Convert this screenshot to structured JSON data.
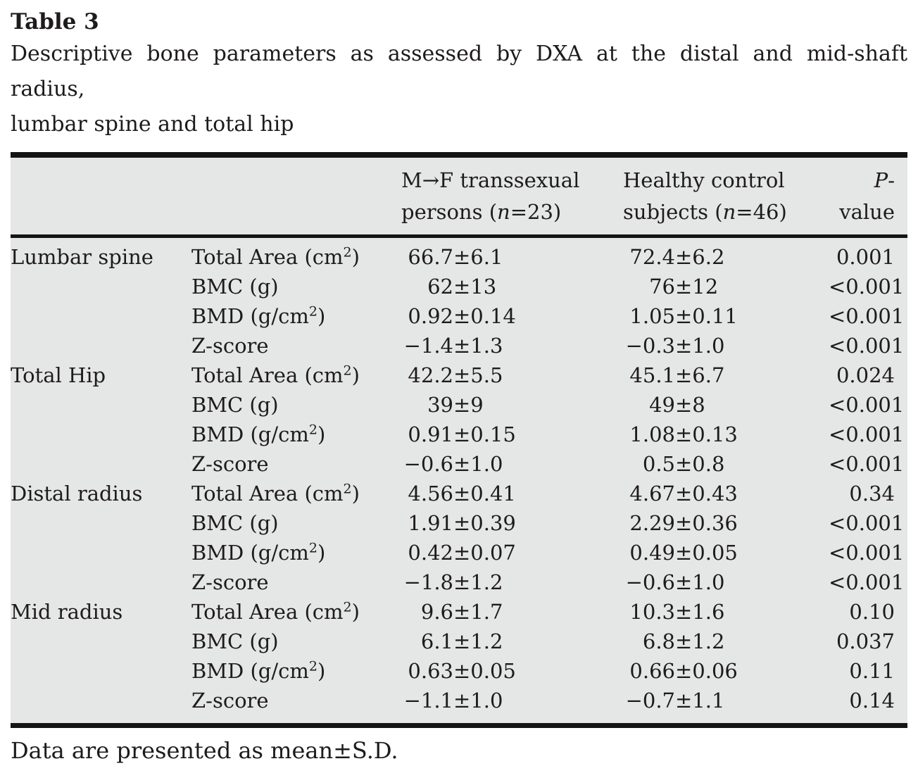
{
  "page": {
    "table_label": "Table 3",
    "caption_line1": "Descriptive bone parameters as assessed by DXA at the distal and mid-shaft radius,",
    "caption_line2": "lumbar spine and total hip",
    "footnote": "Data are presented as mean±S.D."
  },
  "colors": {
    "table_background": "#e5e6e6",
    "rule": "#141414",
    "text": "#1e1b1b"
  },
  "table": {
    "header": {
      "mf_line1": "M→F transsexual",
      "mf_line2": [
        "persons (",
        "n",
        "=23)"
      ],
      "hc_line1": "Healthy control",
      "hc_line2": [
        "subjects (",
        "n",
        "=46)"
      ],
      "p": [
        "P",
        "-value"
      ]
    },
    "groups": [
      {
        "region": "Lumbar spine",
        "rows": [
          {
            "param": [
              "Total Area (cm",
              "2",
              ")"
            ],
            "mf": [
              "66.7",
              "±6.1"
            ],
            "hc": [
              "72.4",
              "±6.2"
            ],
            "p": "0.001"
          },
          {
            "param": [
              "BMC (g)"
            ],
            "mf": [
              "62",
              "±13"
            ],
            "hc": [
              "76",
              "±12"
            ],
            "p": "<0.001"
          },
          {
            "param": [
              "BMD (g/cm",
              "2",
              ")"
            ],
            "mf": [
              "0.92",
              "±0.14"
            ],
            "hc": [
              "1.05",
              "±0.11"
            ],
            "p": "<0.001"
          },
          {
            "param": [
              "Z-score"
            ],
            "mf": [
              "−1.4",
              "±1.3"
            ],
            "hc": [
              "−0.3",
              "±1.0"
            ],
            "p": "<0.001"
          }
        ]
      },
      {
        "region": "Total Hip",
        "rows": [
          {
            "param": [
              "Total Area (cm",
              "2",
              ")"
            ],
            "mf": [
              "42.2",
              "±5.5"
            ],
            "hc": [
              "45.1",
              "±6.7"
            ],
            "p": "0.024"
          },
          {
            "param": [
              "BMC (g)"
            ],
            "mf": [
              "39",
              "±9"
            ],
            "hc": [
              "49",
              "±8"
            ],
            "p": "<0.001"
          },
          {
            "param": [
              "BMD (g/cm",
              "2",
              ")"
            ],
            "mf": [
              "0.91",
              "±0.15"
            ],
            "hc": [
              "1.08",
              "±0.13"
            ],
            "p": "<0.001"
          },
          {
            "param": [
              "Z-score"
            ],
            "mf": [
              "−0.6",
              "±1.0"
            ],
            "hc": [
              "0.5",
              "±0.8"
            ],
            "p": "<0.001"
          }
        ]
      },
      {
        "region": "Distal radius",
        "rows": [
          {
            "param": [
              "Total Area (cm",
              "2",
              ")"
            ],
            "mf": [
              "4.56",
              "±0.41"
            ],
            "hc": [
              "4.67",
              "±0.43"
            ],
            "p": "0.34"
          },
          {
            "param": [
              "BMC (g)"
            ],
            "mf": [
              "1.91",
              "±0.39"
            ],
            "hc": [
              "2.29",
              "±0.36"
            ],
            "p": "<0.001"
          },
          {
            "param": [
              "BMD (g/cm",
              "2",
              ")"
            ],
            "mf": [
              "0.42",
              "±0.07"
            ],
            "hc": [
              "0.49",
              "±0.05"
            ],
            "p": "<0.001"
          },
          {
            "param": [
              "Z-score"
            ],
            "mf": [
              "−1.8",
              "±1.2"
            ],
            "hc": [
              "−0.6",
              "±1.0"
            ],
            "p": "<0.001"
          }
        ]
      },
      {
        "region": "Mid radius",
        "rows": [
          {
            "param": [
              "Total Area (cm",
              "2",
              ")"
            ],
            "mf": [
              "9.6",
              "±1.7"
            ],
            "hc": [
              "10.3",
              "±1.6"
            ],
            "p": "0.10"
          },
          {
            "param": [
              "BMC (g)"
            ],
            "mf": [
              "6.1",
              "±1.2"
            ],
            "hc": [
              "6.8",
              "±1.2"
            ],
            "p": "0.037"
          },
          {
            "param": [
              "BMD (g/cm",
              "2",
              ")"
            ],
            "mf": [
              "0.63",
              "±0.05"
            ],
            "hc": [
              "0.66",
              "±0.06"
            ],
            "p": "0.11"
          },
          {
            "param": [
              "Z-score"
            ],
            "mf": [
              "−1.1",
              "±1.0"
            ],
            "hc": [
              "−0.7",
              "±1.1"
            ],
            "p": "0.14"
          }
        ]
      }
    ]
  }
}
